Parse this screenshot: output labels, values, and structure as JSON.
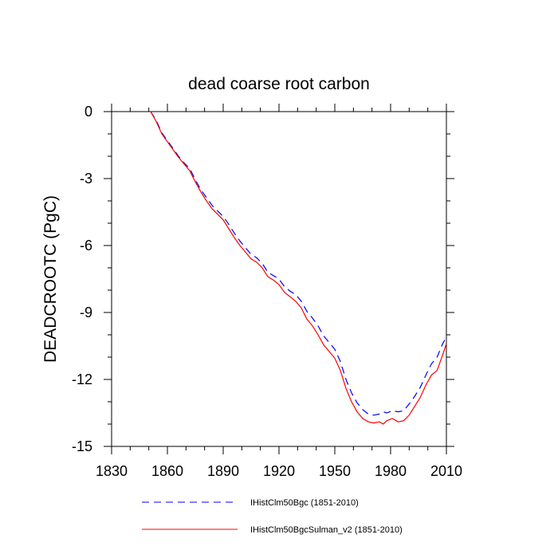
{
  "chart_data": {
    "type": "line",
    "title": "dead coarse root carbon",
    "xlabel": "",
    "ylabel": "DEADCROOTC  (PgC)",
    "xlim": [
      1830,
      2010
    ],
    "ylim": [
      -15,
      0
    ],
    "x_ticks": [
      1830,
      1860,
      1890,
      1920,
      1950,
      1980,
      2010
    ],
    "y_ticks": [
      0,
      -3,
      -6,
      -9,
      -12,
      -15
    ],
    "grid": false,
    "legend_placement": "bottom",
    "series": [
      {
        "name": "IHistClm50Bgc (1851-2010)",
        "color": "#0000ff",
        "style": "dashed",
        "points": [
          [
            1851,
            0
          ],
          [
            1854,
            -0.4
          ],
          [
            1857,
            -0.95
          ],
          [
            1860,
            -1.3
          ],
          [
            1863,
            -1.65
          ],
          [
            1866,
            -2.0
          ],
          [
            1869,
            -2.3
          ],
          [
            1872,
            -2.55
          ],
          [
            1875,
            -3.05
          ],
          [
            1878,
            -3.5
          ],
          [
            1881,
            -3.85
          ],
          [
            1884,
            -4.2
          ],
          [
            1887,
            -4.45
          ],
          [
            1890,
            -4.7
          ],
          [
            1893,
            -5.05
          ],
          [
            1896,
            -5.45
          ],
          [
            1899,
            -5.8
          ],
          [
            1902,
            -6.1
          ],
          [
            1905,
            -6.4
          ],
          [
            1908,
            -6.55
          ],
          [
            1911,
            -6.8
          ],
          [
            1914,
            -7.2
          ],
          [
            1917,
            -7.35
          ],
          [
            1920,
            -7.5
          ],
          [
            1923,
            -7.85
          ],
          [
            1926,
            -8.05
          ],
          [
            1929,
            -8.2
          ],
          [
            1932,
            -8.5
          ],
          [
            1935,
            -8.95
          ],
          [
            1938,
            -9.25
          ],
          [
            1941,
            -9.6
          ],
          [
            1944,
            -10.05
          ],
          [
            1947,
            -10.35
          ],
          [
            1950,
            -10.65
          ],
          [
            1953,
            -11.2
          ],
          [
            1956,
            -12.0
          ],
          [
            1959,
            -12.6
          ],
          [
            1962,
            -13.05
          ],
          [
            1965,
            -13.35
          ],
          [
            1968,
            -13.55
          ],
          [
            1971,
            -13.6
          ],
          [
            1974,
            -13.55
          ],
          [
            1976,
            -13.45
          ],
          [
            1978,
            -13.5
          ],
          [
            1981,
            -13.4
          ],
          [
            1984,
            -13.45
          ],
          [
            1987,
            -13.4
          ],
          [
            1990,
            -13.1
          ],
          [
            1993,
            -12.75
          ],
          [
            1996,
            -12.35
          ],
          [
            1999,
            -11.8
          ],
          [
            2002,
            -11.3
          ],
          [
            2005,
            -11.0
          ],
          [
            2008,
            -10.4
          ],
          [
            2010,
            -10.1
          ]
        ]
      },
      {
        "name": "IHistClm50BgcSulman_v2 (1851-2010)",
        "color": "#ff0000",
        "style": "solid",
        "points": [
          [
            1851,
            0
          ],
          [
            1854,
            -0.45
          ],
          [
            1857,
            -1.0
          ],
          [
            1860,
            -1.35
          ],
          [
            1863,
            -1.7
          ],
          [
            1866,
            -2.05
          ],
          [
            1869,
            -2.35
          ],
          [
            1872,
            -2.65
          ],
          [
            1875,
            -3.15
          ],
          [
            1878,
            -3.6
          ],
          [
            1881,
            -4.0
          ],
          [
            1884,
            -4.35
          ],
          [
            1887,
            -4.6
          ],
          [
            1890,
            -4.85
          ],
          [
            1893,
            -5.25
          ],
          [
            1896,
            -5.65
          ],
          [
            1899,
            -6.0
          ],
          [
            1902,
            -6.3
          ],
          [
            1905,
            -6.6
          ],
          [
            1908,
            -6.75
          ],
          [
            1911,
            -7.0
          ],
          [
            1914,
            -7.4
          ],
          [
            1917,
            -7.55
          ],
          [
            1920,
            -7.75
          ],
          [
            1923,
            -8.1
          ],
          [
            1926,
            -8.3
          ],
          [
            1929,
            -8.5
          ],
          [
            1932,
            -8.8
          ],
          [
            1935,
            -9.3
          ],
          [
            1938,
            -9.6
          ],
          [
            1941,
            -10.0
          ],
          [
            1944,
            -10.45
          ],
          [
            1947,
            -10.75
          ],
          [
            1950,
            -11.05
          ],
          [
            1953,
            -11.6
          ],
          [
            1956,
            -12.4
          ],
          [
            1959,
            -13.0
          ],
          [
            1962,
            -13.45
          ],
          [
            1965,
            -13.75
          ],
          [
            1968,
            -13.9
          ],
          [
            1971,
            -13.95
          ],
          [
            1974,
            -13.9
          ],
          [
            1976,
            -14.0
          ],
          [
            1978,
            -13.85
          ],
          [
            1981,
            -13.75
          ],
          [
            1984,
            -13.9
          ],
          [
            1987,
            -13.85
          ],
          [
            1990,
            -13.6
          ],
          [
            1993,
            -13.2
          ],
          [
            1996,
            -12.8
          ],
          [
            1999,
            -12.25
          ],
          [
            2002,
            -11.8
          ],
          [
            2005,
            -11.6
          ],
          [
            2008,
            -10.9
          ],
          [
            2010,
            -10.4
          ]
        ]
      }
    ]
  }
}
